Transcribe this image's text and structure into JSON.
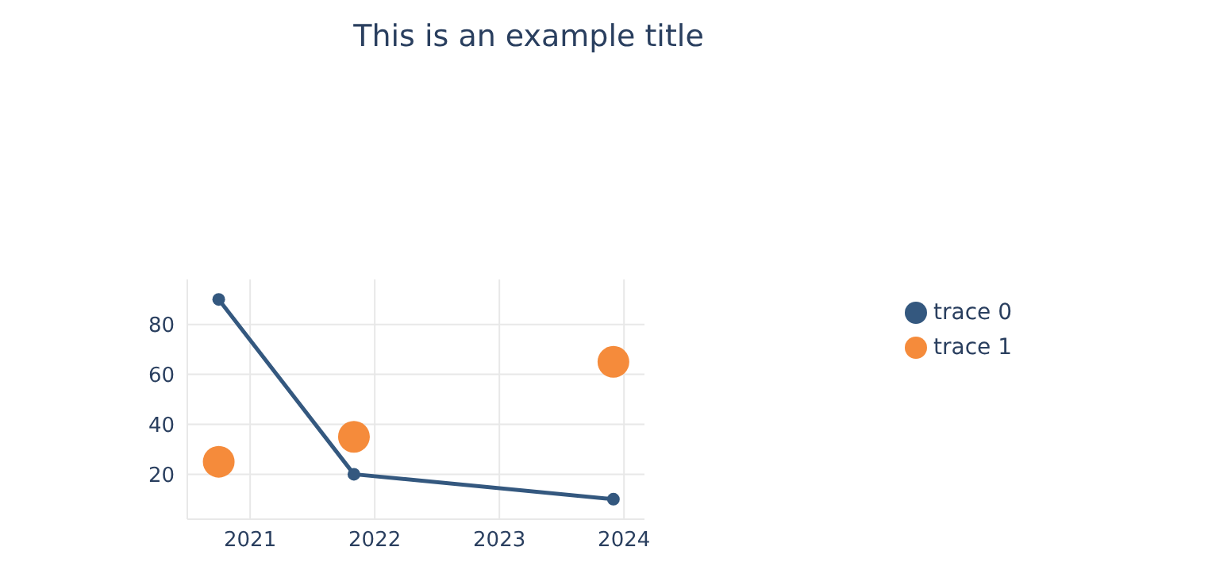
{
  "chart_data": {
    "type": "line",
    "title": "This is an example title",
    "series": [
      {
        "name": "trace 0",
        "color": "#34587f",
        "marker": "circle",
        "x": [
          "2020-10-01",
          "2021-11-01",
          "2023-12-01"
        ],
        "values": [
          90,
          20,
          10
        ]
      },
      {
        "name": "trace 1",
        "type": "scatter",
        "color": "#f58b3b",
        "marker": "circle",
        "x": [
          "2020-10-01",
          "2021-11-01",
          "2023-12-01"
        ],
        "values": [
          25,
          35,
          65
        ]
      }
    ],
    "xlim": [
      "2020-07-01",
      "2024-03-01"
    ],
    "xticks": [
      "2021",
      "2022",
      "2023",
      "2024"
    ],
    "ylim": [
      2,
      98
    ],
    "yticks": [
      20,
      40,
      60,
      80
    ],
    "grid": true,
    "legend": "right"
  }
}
